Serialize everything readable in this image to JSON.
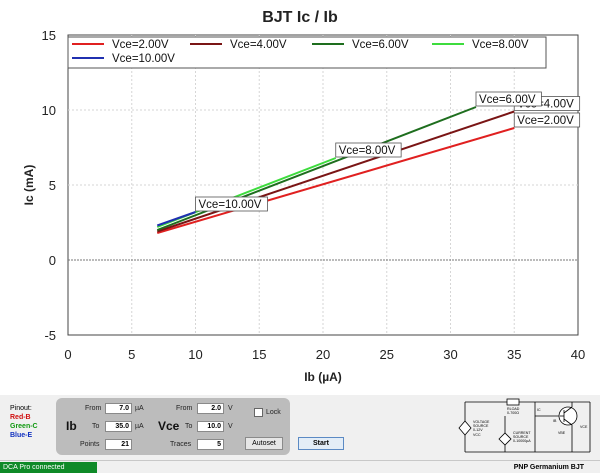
{
  "chart_data": {
    "type": "line",
    "title": "BJT Ic / Ib",
    "xlabel": "Ib (µA)",
    "ylabel": "Ic (mA)",
    "xlim": [
      0,
      40
    ],
    "ylim": [
      -5,
      15
    ],
    "xticks": [
      0,
      5,
      10,
      15,
      20,
      25,
      30,
      35,
      40
    ],
    "yticks": [
      -5,
      0,
      5,
      10,
      15
    ],
    "grid": true,
    "legend_position": "top",
    "series": [
      {
        "name": "Vce=2.00V",
        "color": "#e02020",
        "x": [
          7,
          35
        ],
        "y": [
          1.8,
          8.8
        ],
        "label_at": [
          35,
          8.8
        ]
      },
      {
        "name": "Vce=4.00V",
        "color": "#7a1515",
        "x": [
          7,
          35
        ],
        "y": [
          1.9,
          9.9
        ],
        "label_at": [
          35,
          9.9
        ]
      },
      {
        "name": "Vce=6.00V",
        "color": "#1e6e1e",
        "x": [
          7,
          32
        ],
        "y": [
          2.0,
          10.2
        ],
        "label_at": [
          32,
          10.2
        ]
      },
      {
        "name": "Vce=8.00V",
        "color": "#3ddc3d",
        "x": [
          7,
          21
        ],
        "y": [
          2.2,
          6.8
        ],
        "label_at": [
          21,
          6.8
        ]
      },
      {
        "name": "Vce=10.00V",
        "color": "#2030b0",
        "x": [
          7,
          10
        ],
        "y": [
          2.3,
          3.2
        ],
        "label_at": [
          10,
          3.2
        ]
      }
    ]
  },
  "controls": {
    "pinout": {
      "title": "Pinout:",
      "red": "Red-B",
      "green": "Green-C",
      "blue": "Blue-E"
    },
    "ib": {
      "label": "Ib",
      "from_label": "From",
      "from": "7.0",
      "to_label": "To",
      "to": "35.0",
      "unit": "µA",
      "points_label": "Points",
      "points": "21"
    },
    "vce": {
      "label": "Vce",
      "from_label": "From",
      "from": "2.0",
      "to_label": "To",
      "to": "10.0",
      "unit": "V",
      "traces_label": "Traces",
      "traces": "5"
    },
    "lock_label": "Lock",
    "autoset_label": "Autoset",
    "start_label": "Start"
  },
  "circuit": {
    "voltage_source_1": "VOLTAGE",
    "voltage_source_2": "SOURCE",
    "voltage_source_3": "0-12V",
    "vcc": "VCC",
    "rload_1": "RLOAD",
    "rload_2": "0-700Ω",
    "current_source_1": "CURRENT",
    "current_source_2": "SOURCE",
    "current_source_3": "0-10000µA",
    "ic": "IC",
    "ib": "IB",
    "vbe": "VBE",
    "vce": "VCE"
  },
  "status": {
    "connection": "DCA Pro connected",
    "device": "PNP Germanium BJT"
  }
}
